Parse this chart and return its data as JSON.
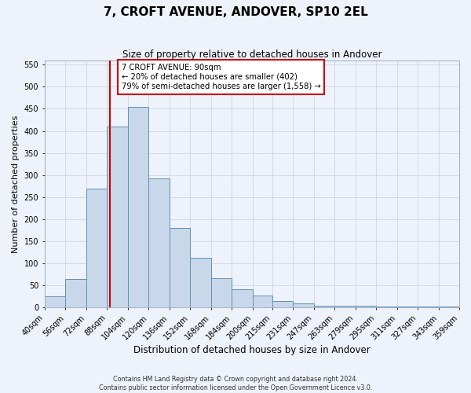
{
  "title": "7, CROFT AVENUE, ANDOVER, SP10 2EL",
  "subtitle": "Size of property relative to detached houses in Andover",
  "xlabel": "Distribution of detached houses by size in Andover",
  "ylabel": "Number of detached properties",
  "bar_color": "#c8d8ea",
  "bar_edge_color": "#6090b8",
  "background_color": "#eef2fa",
  "grid_color": "#c8d0dc",
  "vline_x": 90,
  "vline_color": "#cc0000",
  "annotation_line1": "7 CROFT AVENUE: 90sqm",
  "annotation_line2": "← 20% of detached houses are smaller (402)",
  "annotation_line3": "79% of semi-detached houses are larger (1,558) →",
  "annotation_box_edgecolor": "#cc0000",
  "footer_line1": "Contains HM Land Registry data © Crown copyright and database right 2024.",
  "footer_line2": "Contains public sector information licensed under the Open Government Licence v3.0.",
  "bin_edges": [
    40,
    56,
    72,
    88,
    104,
    120,
    136,
    152,
    168,
    184,
    200,
    215,
    231,
    247,
    263,
    279,
    295,
    311,
    327,
    343,
    359
  ],
  "bar_heights": [
    25,
    65,
    270,
    410,
    455,
    293,
    180,
    113,
    67,
    42,
    27,
    15,
    10,
    5,
    5,
    5,
    3,
    3,
    3,
    3
  ],
  "ylim": [
    0,
    560
  ],
  "yticks": [
    0,
    50,
    100,
    150,
    200,
    250,
    300,
    350,
    400,
    450,
    500,
    550
  ]
}
